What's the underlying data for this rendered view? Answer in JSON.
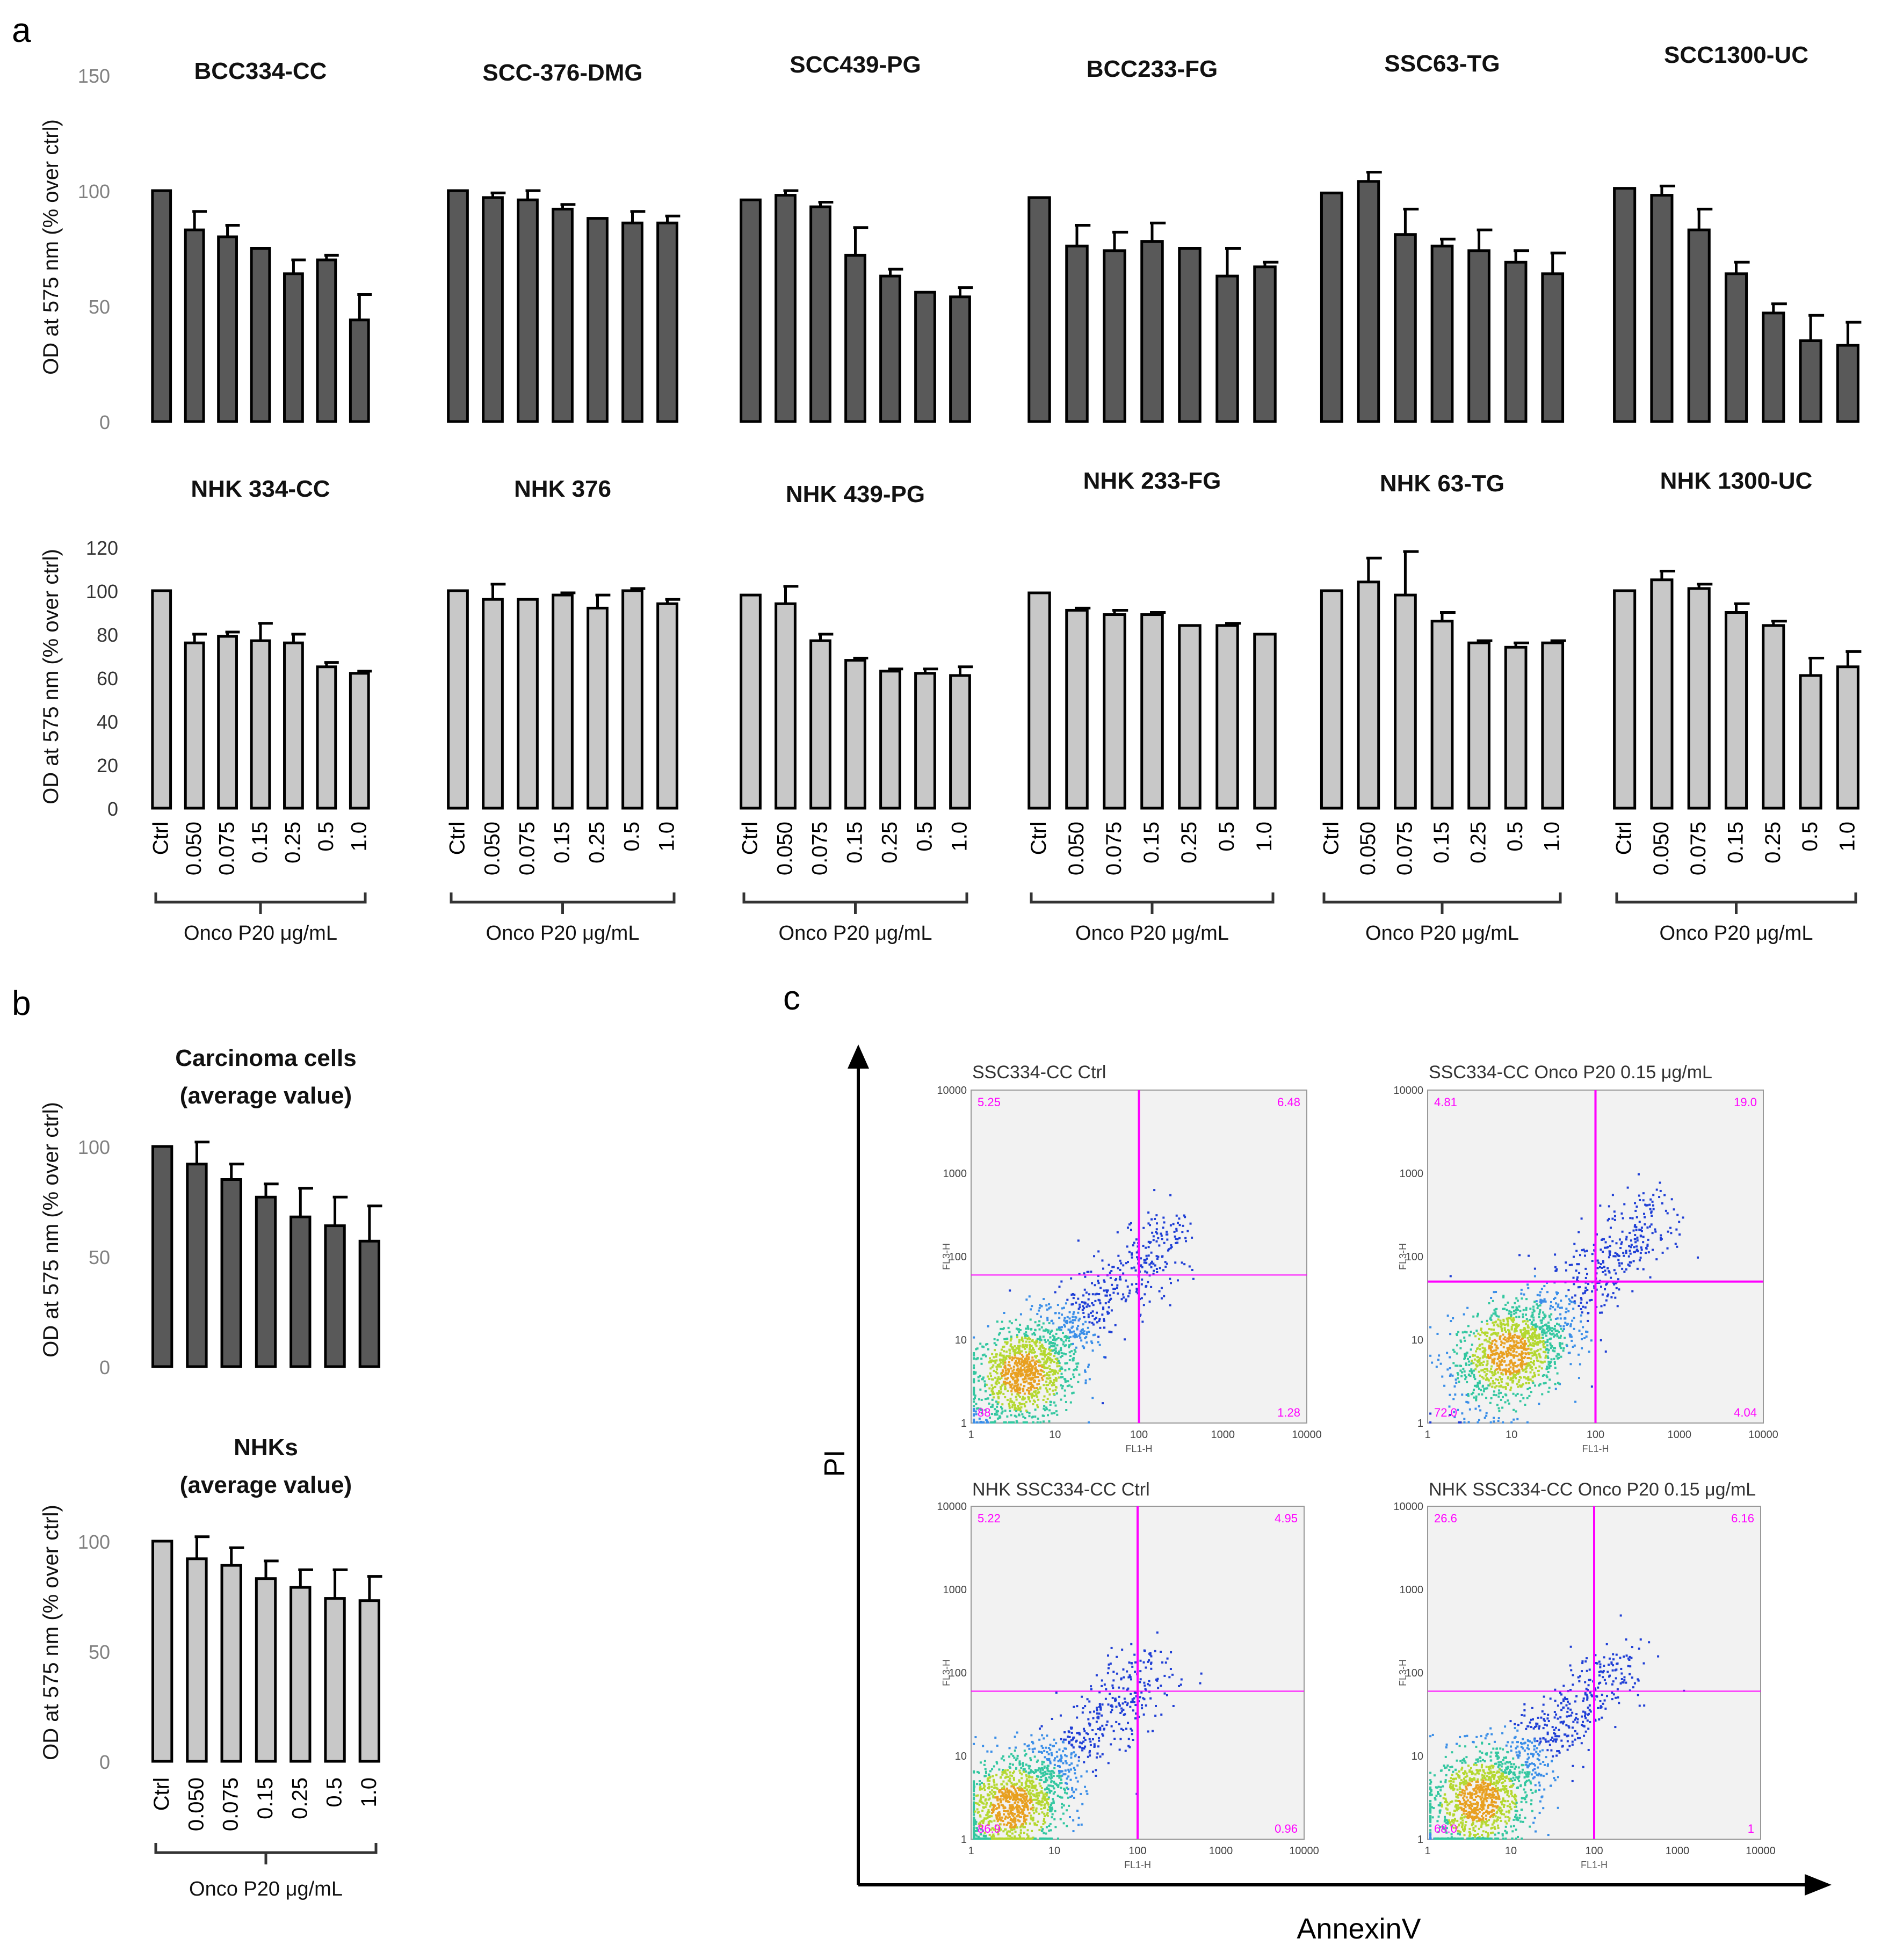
{
  "panel_labels": {
    "a": "a",
    "b": "b",
    "c": "c"
  },
  "colors": {
    "dark_bar": "#595959",
    "light_bar": "#c8c8c8",
    "axis": "#000000",
    "gate": "#ff00ff",
    "flow_bg": "#f2f2f2"
  },
  "y_axis_label": "OD at 575 nm (% over ctrl)",
  "x_group_label": "Onco P20 μg/mL",
  "ticks": {
    "carcinoma": [
      "0",
      "50",
      "100",
      "150"
    ],
    "carcinoma_values": [
      0,
      50,
      100,
      150
    ],
    "nhk": [
      "0",
      "20",
      "40",
      "60",
      "80",
      "100",
      "120"
    ],
    "nhk_values": [
      0,
      20,
      40,
      60,
      80,
      100,
      120
    ],
    "avg": [
      "0",
      "50",
      "100"
    ],
    "avg_values": [
      0,
      50,
      100
    ]
  },
  "chart_data": [
    {
      "type": "bar",
      "title": "BCC334-CC",
      "ylabel": "OD at 575 nm (% over ctrl)",
      "ylim": [
        0,
        150
      ],
      "values": [
        100,
        83,
        80,
        75,
        64,
        70,
        44
      ],
      "errors": [
        0,
        8,
        5,
        0,
        6,
        2,
        11
      ]
    },
    {
      "type": "bar",
      "title": "SCC-376-DMG",
      "ylim": [
        0,
        150
      ],
      "values": [
        100,
        97,
        96,
        92,
        88,
        86,
        86
      ],
      "errors": [
        0,
        2,
        4,
        2,
        0,
        5,
        3
      ]
    },
    {
      "type": "bar",
      "title": "SCC439-PG",
      "ylim": [
        0,
        150
      ],
      "values": [
        96,
        98,
        93,
        72,
        63,
        56,
        54
      ],
      "errors": [
        0,
        2,
        2,
        12,
        3,
        0,
        4
      ]
    },
    {
      "type": "bar",
      "title": "BCC233-FG",
      "ylim": [
        0,
        150
      ],
      "values": [
        97,
        76,
        74,
        78,
        75,
        63,
        67
      ],
      "errors": [
        0,
        9,
        8,
        8,
        0,
        12,
        2
      ]
    },
    {
      "type": "bar",
      "title": "SSC63-TG",
      "ylim": [
        0,
        150
      ],
      "values": [
        99,
        104,
        81,
        76,
        74,
        69,
        64
      ],
      "errors": [
        0,
        4,
        11,
        3,
        9,
        5,
        9
      ]
    },
    {
      "type": "bar",
      "title": "SCC1300-UC",
      "ylim": [
        0,
        150
      ],
      "values": [
        101,
        98,
        83,
        64,
        47,
        35,
        33
      ],
      "errors": [
        0,
        4,
        9,
        5,
        4,
        11,
        10
      ]
    },
    {
      "type": "bar",
      "title": "NHK 334-CC",
      "ylabel": "OD at 575 nm (% over ctrl)",
      "ylim": [
        0,
        120
      ],
      "categories": [
        "Ctrl",
        "0.050",
        "0.075",
        "0.15",
        "0.25",
        "0.5",
        "1.0"
      ],
      "values": [
        100,
        76,
        79,
        77,
        76,
        65,
        62
      ],
      "errors": [
        0,
        4,
        2,
        8,
        4,
        2,
        1
      ]
    },
    {
      "type": "bar",
      "title": "NHK 376",
      "ylim": [
        0,
        120
      ],
      "categories": [
        "Ctrl",
        "0.050",
        "0.075",
        "0.15",
        "0.25",
        "0.5",
        "1.0"
      ],
      "values": [
        100,
        96,
        96,
        98,
        92,
        100,
        94
      ],
      "errors": [
        0,
        7,
        0,
        1,
        6,
        1,
        2
      ]
    },
    {
      "type": "bar",
      "title": "NHK 439-PG",
      "ylim": [
        0,
        120
      ],
      "categories": [
        "Ctrl",
        "0.050",
        "0.075",
        "0.15",
        "0.25",
        "0.5",
        "1.0"
      ],
      "values": [
        98,
        94,
        77,
        68,
        63,
        62,
        61
      ],
      "errors": [
        0,
        8,
        3,
        1,
        1,
        2,
        4
      ]
    },
    {
      "type": "bar",
      "title": "NHK 233-FG",
      "ylim": [
        0,
        120
      ],
      "categories": [
        "Ctrl",
        "0.050",
        "0.075",
        "0.15",
        "0.25",
        "0.5",
        "1.0"
      ],
      "values": [
        99,
        91,
        89,
        89,
        84,
        84,
        80
      ],
      "errors": [
        0,
        1,
        2,
        1,
        0,
        1,
        0
      ]
    },
    {
      "type": "bar",
      "title": "NHK 63-TG",
      "ylim": [
        0,
        120
      ],
      "categories": [
        "Ctrl",
        "0.050",
        "0.075",
        "0.15",
        "0.25",
        "0.5",
        "1.0"
      ],
      "values": [
        100,
        104,
        98,
        86,
        76,
        74,
        76
      ],
      "errors": [
        0,
        11,
        20,
        4,
        1,
        2,
        1
      ]
    },
    {
      "type": "bar",
      "title": "NHK 1300-UC",
      "ylim": [
        0,
        120
      ],
      "categories": [
        "Ctrl",
        "0.050",
        "0.075",
        "0.15",
        "0.25",
        "0.5",
        "1.0"
      ],
      "values": [
        100,
        105,
        101,
        90,
        84,
        61,
        65
      ],
      "errors": [
        0,
        4,
        2,
        4,
        2,
        8,
        7
      ]
    },
    {
      "type": "bar",
      "title": "Carcinoma cells (average value)",
      "title_lines": [
        "Carcinoma  cells",
        "(average  value)"
      ],
      "ylabel": "OD at 575 nm (% over ctrl)",
      "ylim": [
        0,
        100
      ],
      "values": [
        100,
        92,
        85,
        77,
        68,
        64,
        57
      ],
      "errors": [
        0,
        10,
        7,
        6,
        13,
        13,
        16
      ]
    },
    {
      "type": "bar",
      "title": "NHKs (average value)",
      "title_lines": [
        "NHKs",
        "(average  value)"
      ],
      "ylabel": "OD at 575 nm (% over ctrl)",
      "ylim": [
        0,
        100
      ],
      "categories": [
        "Ctrl",
        "0.050",
        "0.075",
        "0.15",
        "0.25",
        "0.5",
        "1.0"
      ],
      "values": [
        100,
        92,
        89,
        83,
        79,
        74,
        73
      ],
      "errors": [
        0,
        10,
        8,
        8,
        8,
        13,
        11
      ]
    }
  ],
  "flow_plots": [
    {
      "title": "SSC334-CC   Ctrl",
      "q_ul": "5.25",
      "q_ur": "6.48",
      "q_ll": "88",
      "q_lr": "1.28",
      "gate_x": 100,
      "gate_y": 60,
      "cluster_x": 4,
      "cluster_y": 4
    },
    {
      "title": "SSC334-CC   Onco P20  0.15 μg/mL",
      "q_ul": "4.81",
      "q_ur": "19.0",
      "q_ll": "72.0",
      "q_lr": "4.04",
      "gate_x": 100,
      "gate_y": 50,
      "cluster_x": 9,
      "cluster_y": 7
    },
    {
      "title": "NHK SSC334-CC   Ctrl",
      "q_ul": "5.22",
      "q_ur": "4.95",
      "q_ll": "86.9",
      "q_lr": "0.96",
      "gate_x": 100,
      "gate_y": 60,
      "cluster_x": 3,
      "cluster_y": 2.5
    },
    {
      "title": "NHK SSC334-CC  Onco P20  0.15 μg/mL",
      "q_ul": "26.6",
      "q_ur": "6.16",
      "q_ll": "68.0",
      "q_lr": "1",
      "gate_x": 100,
      "gate_y": 60,
      "cluster_x": 4,
      "cluster_y": 3
    }
  ],
  "flow_axis_ticks": [
    "1",
    "10",
    "100",
    "1000",
    "10000"
  ],
  "flow_y_tick": "FL3-H",
  "flow_x_tick": "FL1-H",
  "flow_axes": {
    "x": "AnnexinV",
    "y": "PI"
  }
}
